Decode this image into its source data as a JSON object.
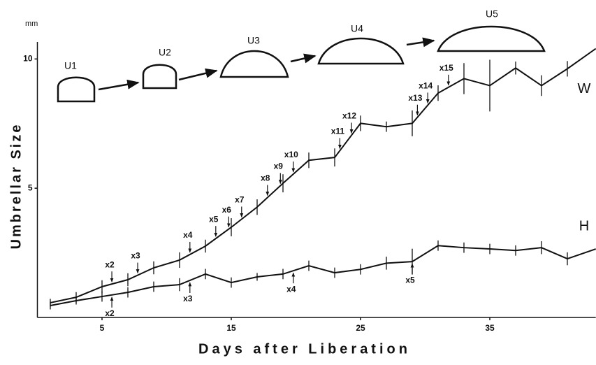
{
  "chart_data": {
    "type": "line",
    "x_label": "Days after Liberation",
    "y_label": "Umbrellar Size",
    "y_unit": "mm",
    "stages": [
      "U1",
      "U2",
      "U3",
      "U4",
      "U5"
    ],
    "x": [
      1,
      3,
      5,
      7,
      9,
      11,
      13,
      15,
      17,
      19,
      21,
      23,
      25,
      27,
      29,
      31,
      33,
      35,
      37,
      39,
      41,
      43.2
    ],
    "series": [
      {
        "name": "W",
        "color": "#111111",
        "values": [
          0.57,
          0.78,
          1.19,
          1.46,
          1.92,
          2.22,
          2.76,
          3.49,
          4.27,
          5.19,
          6.08,
          6.19,
          7.51,
          7.38,
          7.51,
          8.68,
          9.24,
          8.97,
          9.65,
          8.97,
          9.62,
          10.4
        ],
        "errors": [
          0.15,
          0.2,
          0.25,
          0.25,
          0.25,
          0.3,
          0.25,
          0.35,
          0.3,
          0.35,
          0.3,
          0.35,
          0.3,
          0.2,
          0.5,
          0.3,
          0.6,
          1.0,
          0.25,
          0.4,
          0.3,
          null
        ],
        "annotations": [
          {
            "x": 5.76,
            "label": "x2"
          },
          {
            "x": 7.76,
            "label": "x3"
          },
          {
            "x": 11.8,
            "label": "x4"
          },
          {
            "x": 13.8,
            "label": "x5"
          },
          {
            "x": 14.8,
            "label": "x6"
          },
          {
            "x": 15.8,
            "label": "x7"
          },
          {
            "x": 17.8,
            "label": "x8"
          },
          {
            "x": 18.8,
            "label": "x9"
          },
          {
            "x": 19.8,
            "label": "x10"
          },
          {
            "x": 23.4,
            "label": "x11"
          },
          {
            "x": 24.3,
            "label": "x12"
          },
          {
            "x": 29.4,
            "label": "x13"
          },
          {
            "x": 30.2,
            "label": "x14"
          },
          {
            "x": 31.8,
            "label": "x15"
          }
        ]
      },
      {
        "name": "H",
        "color": "#111111",
        "values": [
          0.46,
          0.65,
          0.81,
          0.97,
          1.19,
          1.27,
          1.68,
          1.35,
          1.57,
          1.68,
          2.0,
          1.73,
          1.86,
          2.1,
          2.16,
          2.78,
          2.7,
          2.65,
          2.59,
          2.7,
          2.27,
          2.65
        ],
        "errors": [
          0.15,
          0.15,
          0.2,
          0.2,
          0.2,
          0.25,
          0.2,
          0.2,
          0.15,
          0.2,
          0.2,
          0.2,
          0.2,
          0.25,
          0.5,
          0.2,
          0.2,
          0.2,
          0.2,
          0.25,
          0.25,
          null
        ],
        "annotations": [
          {
            "x": 5.76,
            "label": "x2"
          },
          {
            "x": 11.8,
            "label": "x3"
          },
          {
            "x": 19.8,
            "label": "x4"
          },
          {
            "x": 29.0,
            "label": "x5"
          }
        ]
      }
    ],
    "xlim": [
      0,
      43.2
    ],
    "ylim": [
      0,
      12.2
    ],
    "xticks": [
      5,
      15,
      25,
      35
    ],
    "yticks": [
      5,
      10
    ]
  }
}
